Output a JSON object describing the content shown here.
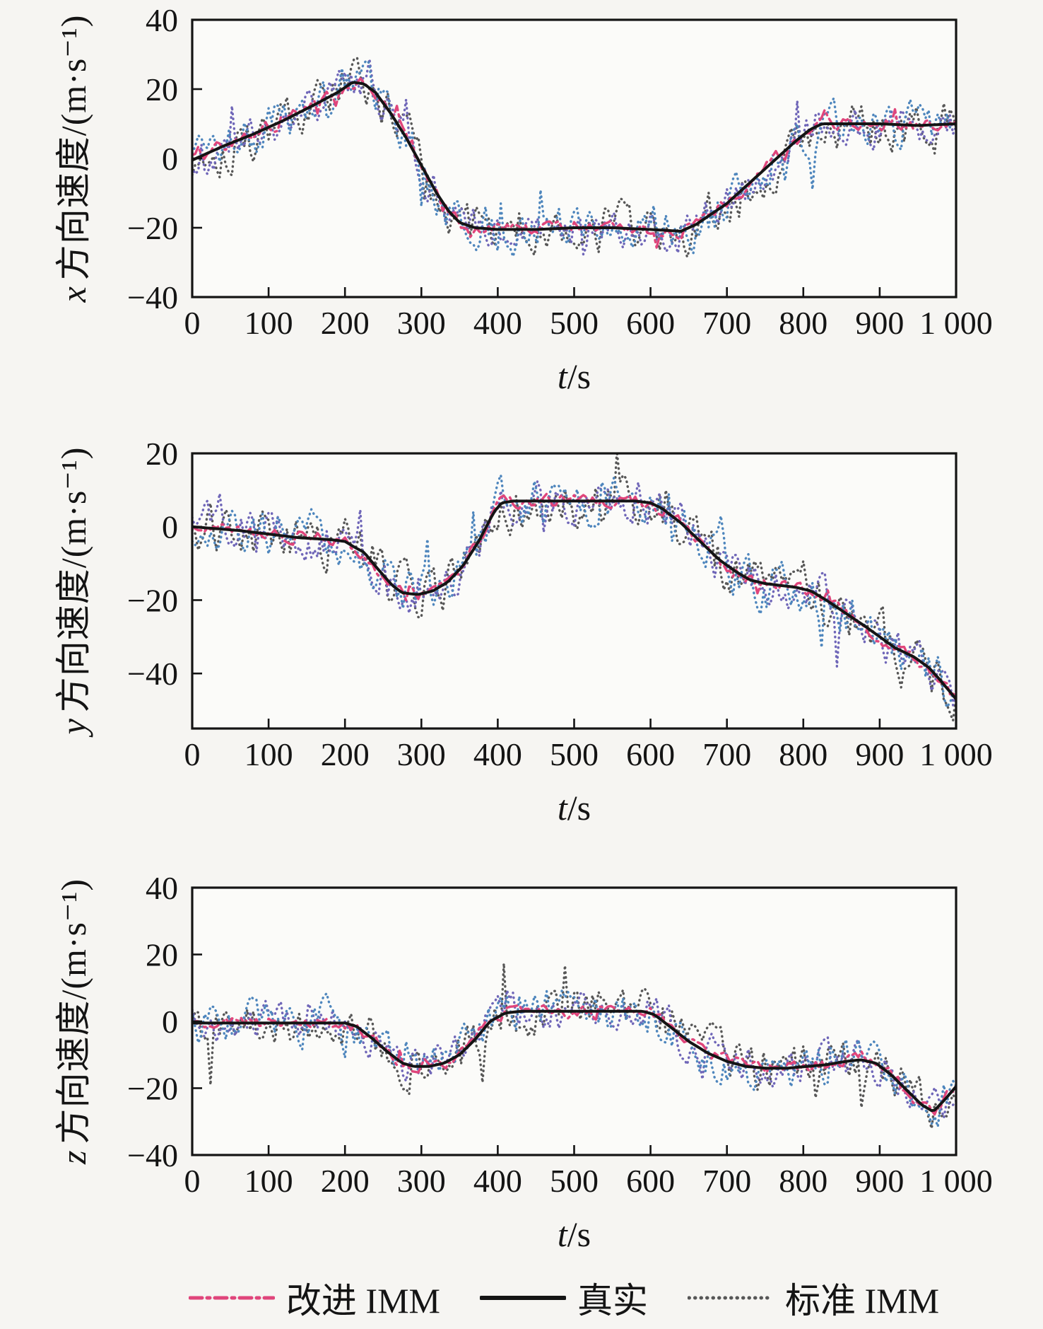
{
  "page": {
    "background_color": "#f6f5f2",
    "axis_color": "#141414",
    "notes": "Three stacked line panels of a tracking-simulation figure. Besides the three legend series, extra unlabeled noisy dotted traces (steel-blue and slate-purple) are visible around the true curve in every panel."
  },
  "legend": {
    "items": [
      {
        "label": "改进 IMM",
        "color": "#e0457b",
        "style": "dashdot"
      },
      {
        "label": "真实",
        "color": "#141414",
        "style": "solid"
      },
      {
        "label": "标准 IMM",
        "color": "#575757",
        "style": "dotted"
      }
    ]
  },
  "chart_data": {
    "type": "line",
    "x_axis": {
      "label_var": "t",
      "label_rest": "/s",
      "xlim": [
        0,
        1000
      ],
      "xtick_values": [
        0,
        100,
        200,
        300,
        400,
        500,
        600,
        700,
        800,
        900,
        1000
      ],
      "xtick_labels": [
        "0",
        "100",
        "200",
        "300",
        "400",
        "500",
        "600",
        "700",
        "800",
        "900",
        "1 000"
      ]
    },
    "panels": [
      {
        "id": "x",
        "ylabel_var": "x",
        "ylabel_rest": "方向速度/(m·s⁻¹)",
        "ylim": [
          -40,
          40
        ],
        "ytick_values": [
          40,
          20,
          0,
          -20,
          -40
        ],
        "ytick_labels": [
          "40",
          "20",
          "0",
          "−20",
          "−40"
        ],
        "true_anchors": [
          [
            0,
            -0.5
          ],
          [
            40,
            3.5
          ],
          [
            80,
            7
          ],
          [
            120,
            11
          ],
          [
            160,
            15.5
          ],
          [
            190,
            19
          ],
          [
            210,
            22
          ],
          [
            225,
            21.5
          ],
          [
            240,
            19
          ],
          [
            260,
            13
          ],
          [
            280,
            6
          ],
          [
            300,
            -2
          ],
          [
            320,
            -10
          ],
          [
            335,
            -15
          ],
          [
            350,
            -18.5
          ],
          [
            370,
            -20
          ],
          [
            400,
            -20.5
          ],
          [
            450,
            -20.5
          ],
          [
            500,
            -20
          ],
          [
            550,
            -20
          ],
          [
            600,
            -20.5
          ],
          [
            640,
            -21
          ],
          [
            660,
            -19
          ],
          [
            680,
            -16
          ],
          [
            700,
            -13
          ],
          [
            730,
            -7
          ],
          [
            760,
            -1
          ],
          [
            790,
            5
          ],
          [
            810,
            8.5
          ],
          [
            825,
            10
          ],
          [
            860,
            10
          ],
          [
            900,
            10
          ],
          [
            950,
            9.5
          ],
          [
            1000,
            10
          ]
        ],
        "series": [
          {
            "name": "标准 IMM",
            "role": "standard-imm",
            "color": "#575757",
            "style": "dotted",
            "noise_amplitude": 9.5,
            "seed": 101
          },
          {
            "name": "未标注轨迹(紫)",
            "role": "noisy-trace-slate",
            "color": "#6f66b8",
            "style": "dotted",
            "noise_amplitude": 7.5,
            "seed": 103
          },
          {
            "name": "未标注轨迹(蓝)",
            "role": "noisy-trace-blue",
            "color": "#4e86bd",
            "style": "dotted",
            "noise_amplitude": 8.5,
            "seed": 102
          },
          {
            "name": "改进 IMM",
            "role": "improved-imm",
            "color": "#e0457b",
            "style": "dashdot",
            "noise_amplitude": 2.4,
            "seed": 104
          },
          {
            "name": "真实",
            "role": "true",
            "color": "#141414",
            "style": "solid",
            "noise_amplitude": 0,
            "seed": 0
          }
        ]
      },
      {
        "id": "y",
        "ylabel_var": "y",
        "ylabel_rest": "方向速度/(m·s⁻¹)",
        "ylim": [
          -55,
          20
        ],
        "ytick_values": [
          20,
          0,
          -20,
          -40
        ],
        "ytick_labels": [
          "20",
          "0",
          "−20",
          "−40"
        ],
        "true_anchors": [
          [
            0,
            0
          ],
          [
            30,
            -0.5
          ],
          [
            60,
            -1
          ],
          [
            100,
            -2
          ],
          [
            140,
            -3
          ],
          [
            180,
            -3.5
          ],
          [
            200,
            -4
          ],
          [
            212,
            -5.5
          ],
          [
            225,
            -7
          ],
          [
            245,
            -12
          ],
          [
            262,
            -16
          ],
          [
            275,
            -18
          ],
          [
            295,
            -18.5
          ],
          [
            315,
            -17.5
          ],
          [
            335,
            -15
          ],
          [
            355,
            -10.5
          ],
          [
            375,
            -4
          ],
          [
            395,
            4
          ],
          [
            405,
            6.5
          ],
          [
            420,
            7
          ],
          [
            460,
            7
          ],
          [
            500,
            7
          ],
          [
            540,
            7
          ],
          [
            580,
            7
          ],
          [
            600,
            6.5
          ],
          [
            615,
            5
          ],
          [
            640,
            1
          ],
          [
            665,
            -4
          ],
          [
            690,
            -9
          ],
          [
            710,
            -12
          ],
          [
            730,
            -14.5
          ],
          [
            750,
            -15.5
          ],
          [
            770,
            -16
          ],
          [
            790,
            -16.5
          ],
          [
            810,
            -17.5
          ],
          [
            830,
            -20
          ],
          [
            855,
            -23.5
          ],
          [
            880,
            -27
          ],
          [
            900,
            -30
          ],
          [
            920,
            -33
          ],
          [
            945,
            -35.5
          ],
          [
            965,
            -38.5
          ],
          [
            980,
            -42
          ],
          [
            1000,
            -47
          ]
        ],
        "series": [
          {
            "name": "标准 IMM",
            "role": "standard-imm",
            "color": "#575757",
            "style": "dotted",
            "noise_amplitude": 9.5,
            "seed": 201
          },
          {
            "name": "未标注轨迹(紫)",
            "role": "noisy-trace-slate",
            "color": "#6f66b8",
            "style": "dotted",
            "noise_amplitude": 7.5,
            "seed": 203
          },
          {
            "name": "未标注轨迹(蓝)",
            "role": "noisy-trace-blue",
            "color": "#4e86bd",
            "style": "dotted",
            "noise_amplitude": 8.5,
            "seed": 202
          },
          {
            "name": "改进 IMM",
            "role": "improved-imm",
            "color": "#e0457b",
            "style": "dashdot",
            "noise_amplitude": 2.4,
            "seed": 204
          },
          {
            "name": "真实",
            "role": "true",
            "color": "#141414",
            "style": "solid",
            "noise_amplitude": 0,
            "seed": 0
          }
        ]
      },
      {
        "id": "z",
        "ylabel_var": "z",
        "ylabel_rest": "方向速度/(m·s⁻¹)",
        "ylim": [
          -40,
          40
        ],
        "ytick_values": [
          40,
          20,
          0,
          -20,
          -40
        ],
        "ytick_labels": [
          "40",
          "20",
          "0",
          "−20",
          "−40"
        ],
        "true_anchors": [
          [
            0,
            -0.5
          ],
          [
            50,
            -0.5
          ],
          [
            100,
            -0.5
          ],
          [
            150,
            -0.5
          ],
          [
            200,
            -0.5
          ],
          [
            215,
            -1.5
          ],
          [
            235,
            -5
          ],
          [
            255,
            -9
          ],
          [
            275,
            -12.5
          ],
          [
            290,
            -13.5
          ],
          [
            310,
            -13.5
          ],
          [
            330,
            -12.5
          ],
          [
            350,
            -10
          ],
          [
            370,
            -5.5
          ],
          [
            390,
            0
          ],
          [
            410,
            2.5
          ],
          [
            430,
            3
          ],
          [
            470,
            3
          ],
          [
            510,
            3
          ],
          [
            550,
            3
          ],
          [
            590,
            3
          ],
          [
            605,
            2
          ],
          [
            625,
            -1.5
          ],
          [
            650,
            -6
          ],
          [
            675,
            -9.5
          ],
          [
            700,
            -12
          ],
          [
            725,
            -13.5
          ],
          [
            750,
            -14
          ],
          [
            780,
            -14
          ],
          [
            805,
            -13.5
          ],
          [
            830,
            -13
          ],
          [
            855,
            -12
          ],
          [
            875,
            -11.5
          ],
          [
            895,
            -12.5
          ],
          [
            915,
            -16
          ],
          [
            935,
            -20.5
          ],
          [
            955,
            -25
          ],
          [
            970,
            -27
          ],
          [
            985,
            -23.5
          ],
          [
            1000,
            -19.5
          ]
        ],
        "series": [
          {
            "name": "标准 IMM",
            "role": "standard-imm",
            "color": "#575757",
            "style": "dotted",
            "noise_amplitude": 9.5,
            "seed": 301
          },
          {
            "name": "未标注轨迹(紫)",
            "role": "noisy-trace-slate",
            "color": "#6f66b8",
            "style": "dotted",
            "noise_amplitude": 7.5,
            "seed": 303
          },
          {
            "name": "未标注轨迹(蓝)",
            "role": "noisy-trace-blue",
            "color": "#4e86bd",
            "style": "dotted",
            "noise_amplitude": 8.5,
            "seed": 302
          },
          {
            "name": "改进 IMM",
            "role": "improved-imm",
            "color": "#e0457b",
            "style": "dashdot",
            "noise_amplitude": 2.4,
            "seed": 304
          },
          {
            "name": "真实",
            "role": "true",
            "color": "#141414",
            "style": "solid",
            "noise_amplitude": 0,
            "seed": 0
          }
        ]
      }
    ]
  }
}
